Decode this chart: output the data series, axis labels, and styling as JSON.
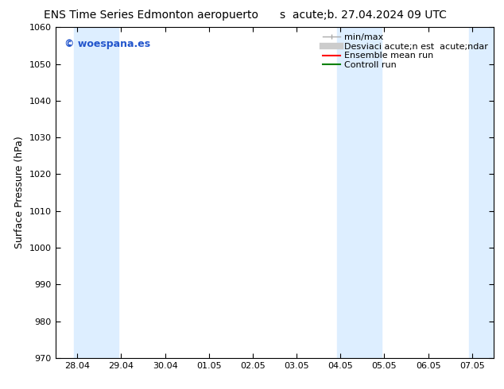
{
  "title": "ENS Time Series Edmonton aeropuerto",
  "subtitle": "s  acute;b. 27.04.2024 09 UTC",
  "ylabel": "Surface Pressure (hPa)",
  "ylim": [
    970,
    1060
  ],
  "yticks": [
    970,
    980,
    990,
    1000,
    1010,
    1020,
    1030,
    1040,
    1050,
    1060
  ],
  "xtick_labels": [
    "28.04",
    "29.04",
    "30.04",
    "01.05",
    "02.05",
    "03.05",
    "04.05",
    "05.05",
    "06.05",
    "07.05"
  ],
  "xtick_positions": [
    0,
    1,
    2,
    3,
    4,
    5,
    6,
    7,
    8,
    9
  ],
  "shaded_bands": [
    {
      "xmin": -0.07,
      "xmax": 0.93,
      "color": "#ddeeff"
    },
    {
      "xmin": 5.93,
      "xmax": 6.93,
      "color": "#ddeeff"
    },
    {
      "xmin": 8.93,
      "xmax": 9.5,
      "color": "#ddeeff"
    }
  ],
  "legend_labels": [
    "min/max",
    "Desviaci acute;n est  acute;ndar",
    "Ensemble mean run",
    "Controll run"
  ],
  "watermark": "© woespana.es",
  "bg_color": "#ffffff",
  "plot_bg_color": "#ffffff",
  "title_fontsize": 10,
  "axis_label_fontsize": 9,
  "tick_fontsize": 8,
  "legend_fontsize": 8,
  "watermark_color": "#2255cc"
}
